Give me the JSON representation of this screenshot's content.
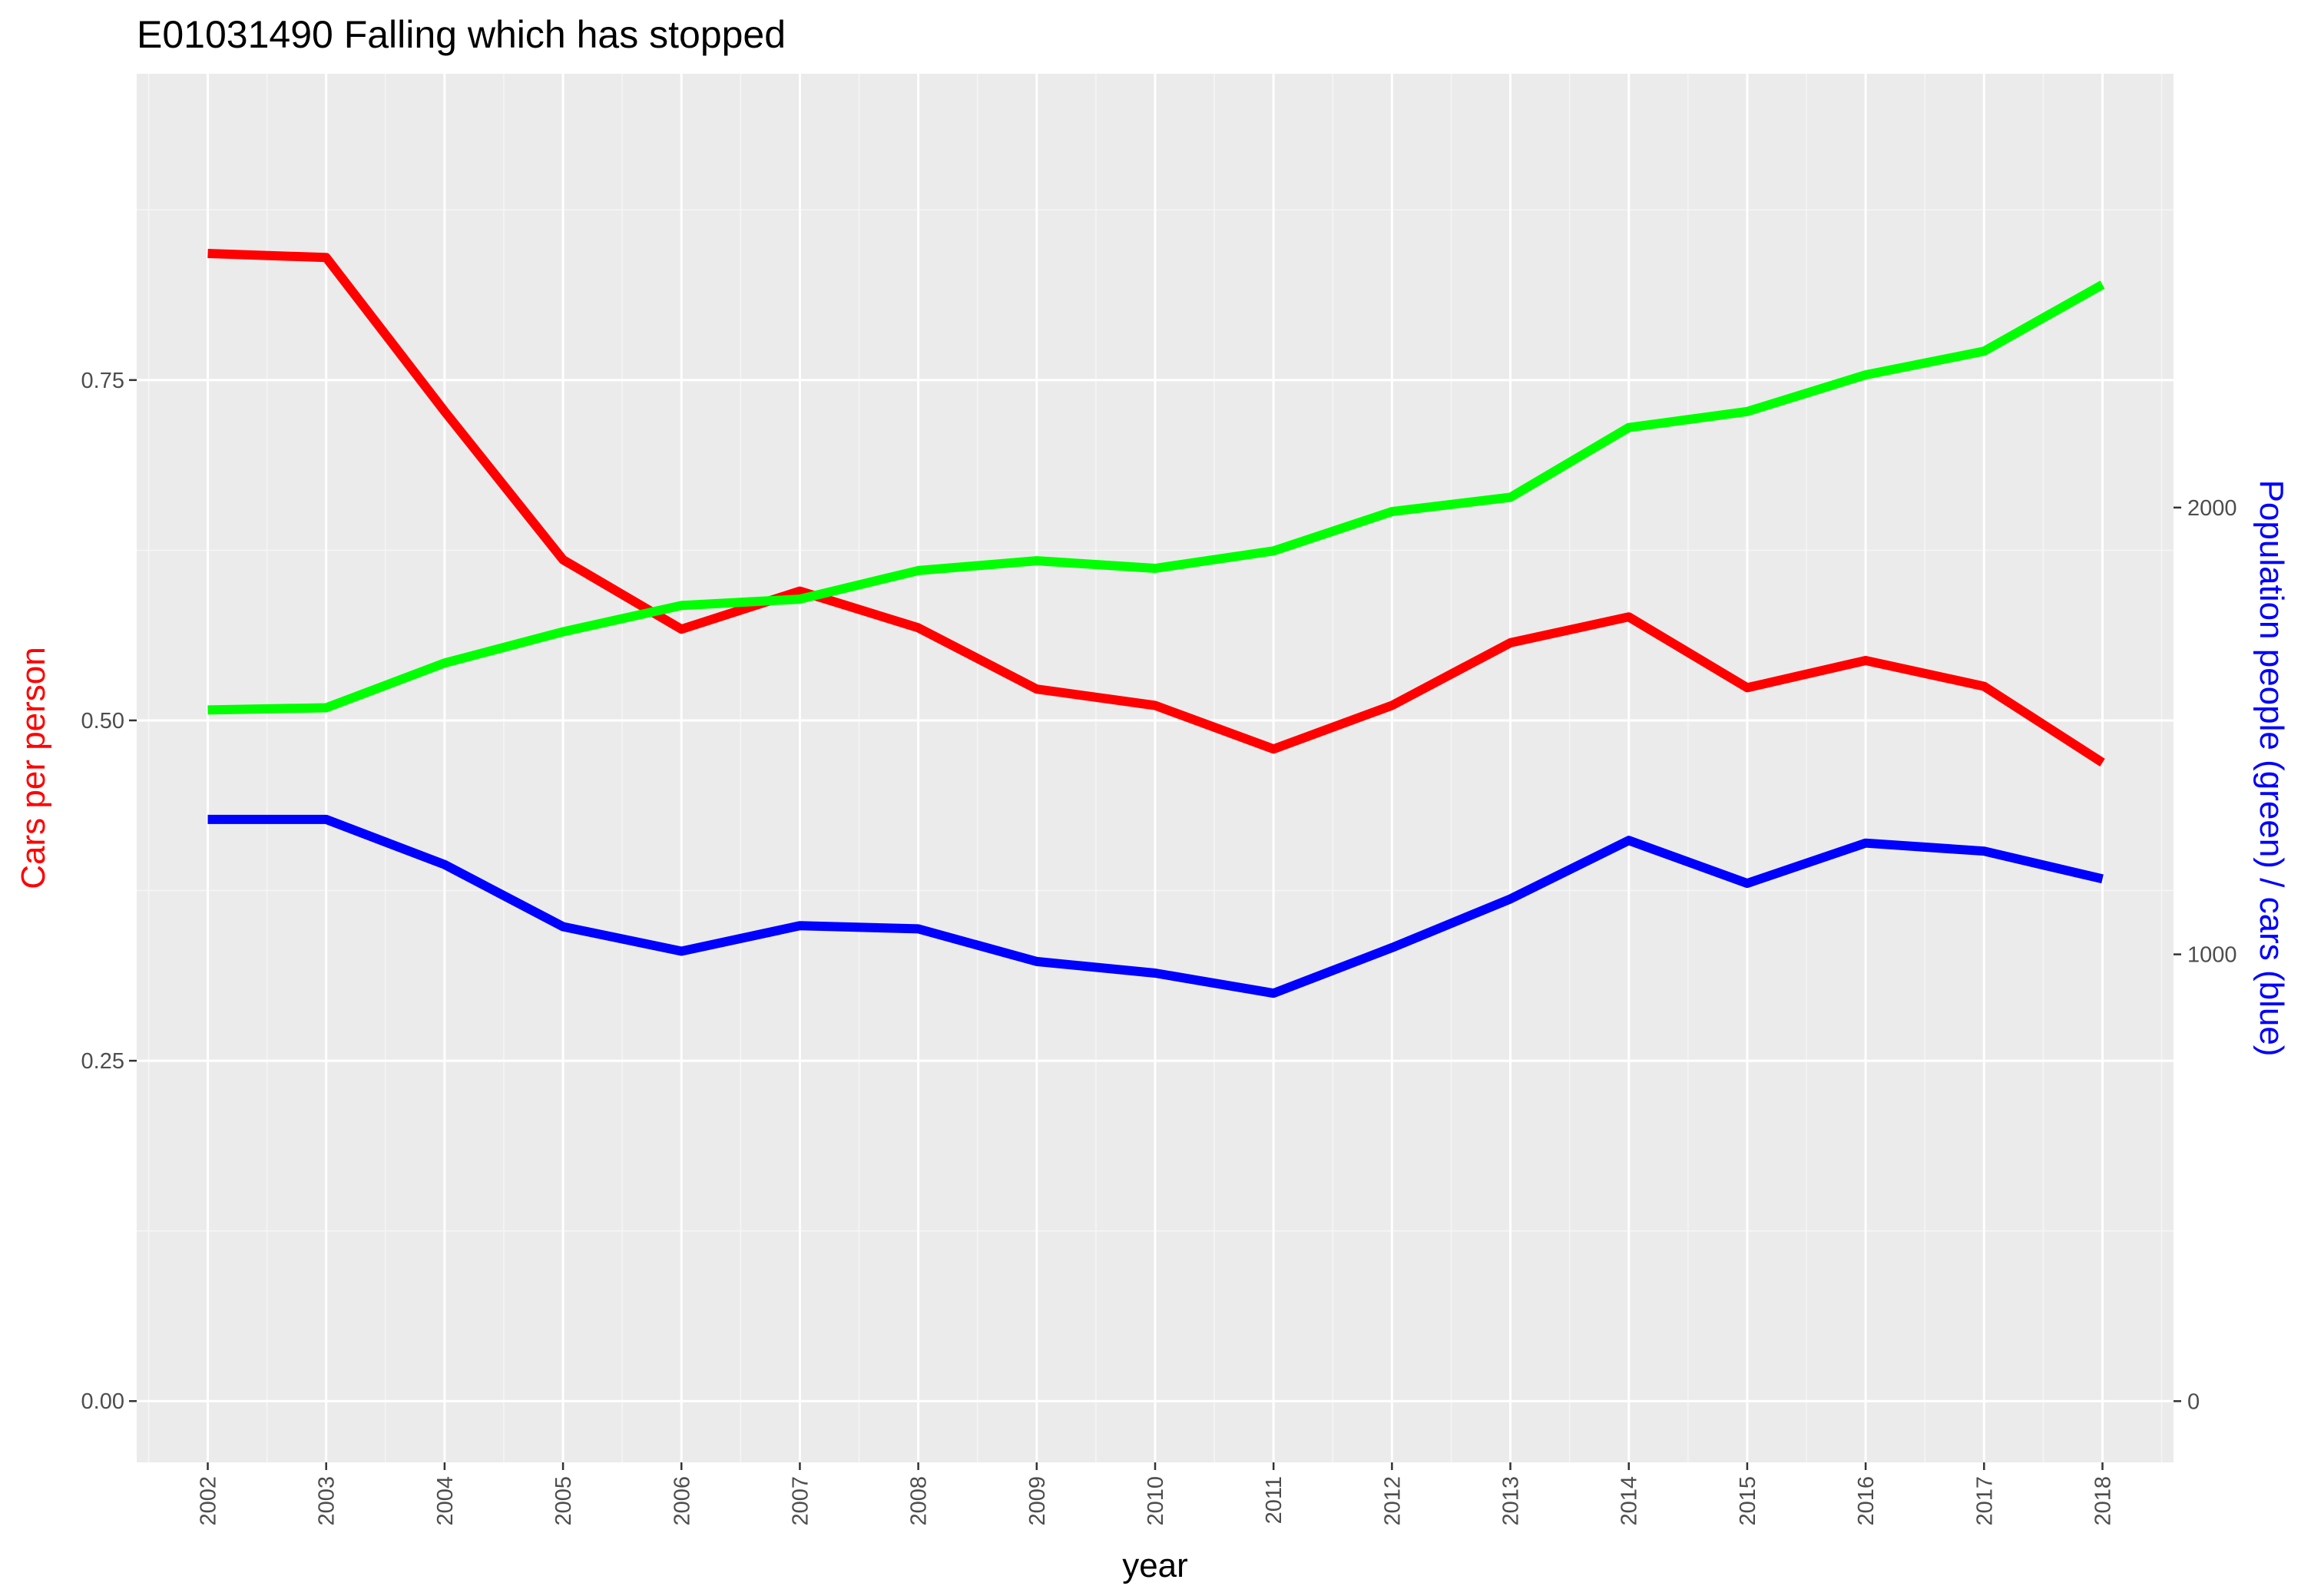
{
  "chart_data": {
    "type": "line",
    "title": "E01031490 Falling which has stopped",
    "xlabel": "year",
    "ylabel_left": "Cars per person",
    "ylabel_right": "Population people (green) / cars (blue)",
    "x": [
      2002,
      2003,
      2004,
      2005,
      2006,
      2007,
      2008,
      2009,
      2010,
      2011,
      2012,
      2013,
      2014,
      2015,
      2016,
      2017,
      2018
    ],
    "x_tick_labels": [
      "2002",
      "2003",
      "2004",
      "2005",
      "2006",
      "2007",
      "2008",
      "2009",
      "2010",
      "2011",
      "2012",
      "2013",
      "2014",
      "2015",
      "2016",
      "2017",
      "2018"
    ],
    "ylim_left": [
      -0.045,
      0.975
    ],
    "ylim_right": [
      -137,
      2971
    ],
    "y_ticks_left": [
      "0.00",
      "0.25",
      "0.50",
      "0.75"
    ],
    "y_ticks_right": [
      "0",
      "1000",
      "2000"
    ],
    "grid": true,
    "legend": "none",
    "series": [
      {
        "axis": "left",
        "color": "#ff0000",
        "values": [
          0.843,
          0.84,
          0.727,
          0.618,
          0.567,
          0.595,
          0.568,
          0.523,
          0.511,
          0.479,
          0.511,
          0.557,
          0.576,
          0.524,
          0.544,
          0.525,
          0.469
        ]
      },
      {
        "axis": "right",
        "color": "#00ff00",
        "values": [
          1547,
          1552,
          1652,
          1722,
          1781,
          1795,
          1859,
          1881,
          1864,
          1903,
          1991,
          2023,
          2179,
          2215,
          2297,
          2350,
          2499
        ]
      },
      {
        "axis": "right",
        "color": "#0000ff",
        "values": [
          1302,
          1302,
          1201,
          1062,
          1007,
          1064,
          1057,
          984,
          958,
          913,
          1015,
          1124,
          1255,
          1159,
          1249,
          1231,
          1169
        ]
      }
    ]
  }
}
